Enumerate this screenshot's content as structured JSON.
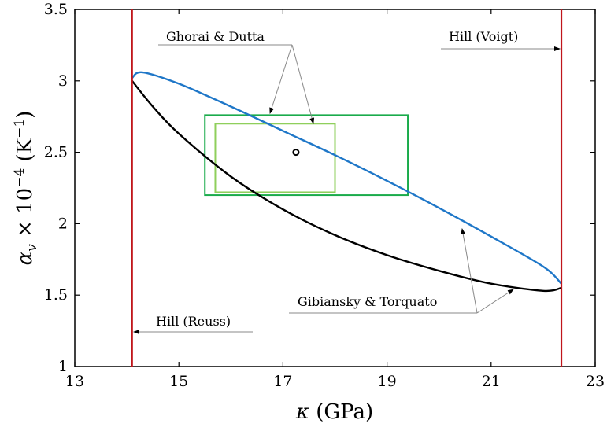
{
  "chart_data": {
    "type": "line",
    "xlabel": "κ (GPa)",
    "ylabel": "α_v × 10^-4 (K^-1)",
    "xlim": [
      13,
      23
    ],
    "ylim": [
      1,
      3.5
    ],
    "x_ticks": [
      "13",
      "15",
      "17",
      "19",
      "21",
      "23"
    ],
    "y_ticks": [
      "1",
      "1.5",
      "2",
      "2.5",
      "3",
      "3.5"
    ],
    "grid": false,
    "series": [
      {
        "name": "Hill (Reuss)",
        "kind": "vertical-line",
        "color": "#c0151b",
        "x": 14.1
      },
      {
        "name": "Hill (Voigt)",
        "kind": "vertical-line",
        "color": "#c0151b",
        "x": 22.35
      },
      {
        "name": "Gibiansky & Torquato",
        "kind": "line",
        "color": "#1f77c8",
        "points": [
          [
            14.1,
            3.02
          ],
          [
            14.3,
            3.06
          ],
          [
            15.0,
            2.98
          ],
          [
            16.0,
            2.82
          ],
          [
            17.0,
            2.65
          ],
          [
            18.0,
            2.48
          ],
          [
            19.0,
            2.3
          ],
          [
            20.0,
            2.11
          ],
          [
            21.0,
            1.91
          ],
          [
            22.0,
            1.7
          ],
          [
            22.35,
            1.58
          ]
        ]
      },
      {
        "name": "Gibiansky & Torquato",
        "kind": "line",
        "color": "#000000",
        "points": [
          [
            14.1,
            3.0
          ],
          [
            14.5,
            2.82
          ],
          [
            15.0,
            2.63
          ],
          [
            16.0,
            2.33
          ],
          [
            17.0,
            2.1
          ],
          [
            18.0,
            1.92
          ],
          [
            19.0,
            1.78
          ],
          [
            20.0,
            1.67
          ],
          [
            21.0,
            1.58
          ],
          [
            22.0,
            1.53
          ],
          [
            22.35,
            1.55
          ]
        ]
      },
      {
        "name": "Ghorai & Dutta",
        "kind": "rectangle",
        "color": "#1aab4b",
        "x_range": [
          15.5,
          19.4
        ],
        "y_range": [
          2.2,
          2.76
        ]
      },
      {
        "name": "Ghorai & Dutta",
        "kind": "rectangle",
        "color": "#8fcf5c",
        "x_range": [
          15.7,
          18.0
        ],
        "y_range": [
          2.22,
          2.7
        ]
      },
      {
        "name": "",
        "kind": "point",
        "color": "#000000",
        "x": 17.25,
        "y": 2.5
      }
    ],
    "annotations": {
      "ghorai": "Ghorai & Dutta",
      "hill_voigt": "Hill (Voigt)",
      "gibiansky": "Gibiansky & Torquato",
      "hill_reuss": "Hill (Reuss)"
    }
  }
}
